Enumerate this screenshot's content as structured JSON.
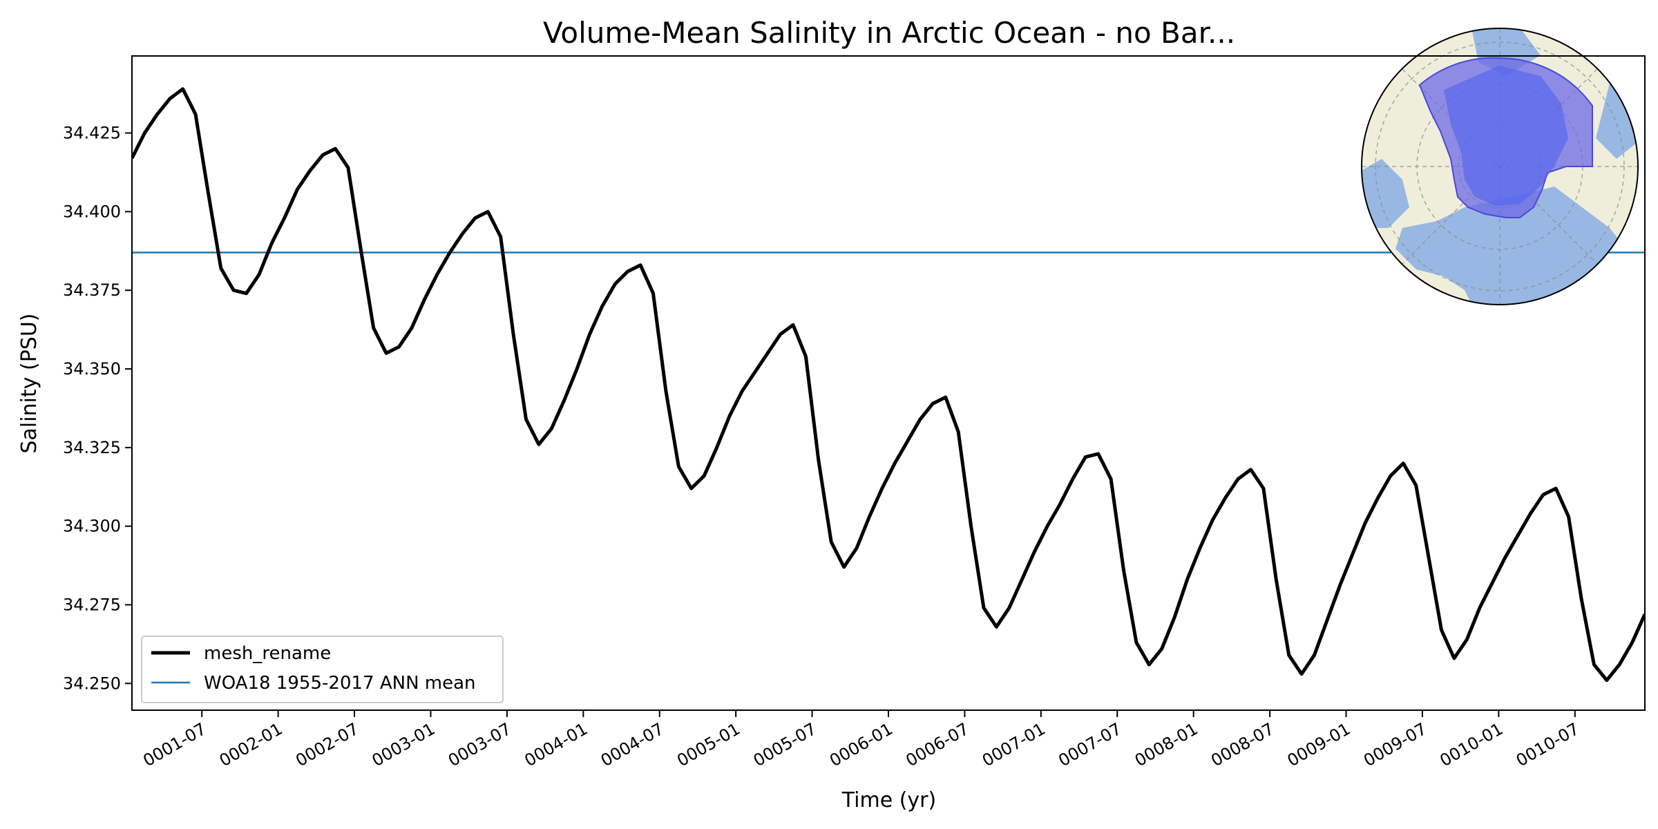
{
  "chart_data": {
    "type": "line",
    "title": "Volume-Mean Salinity in Arctic Ocean - no Bar...",
    "xlabel": "Time (yr)",
    "ylabel": "Salinity (PSU)",
    "xlim": [
      "0001-01-16",
      "0010-12-16"
    ],
    "ylim": [
      34.2415,
      34.4495
    ],
    "x_ticks": [
      "0001-07",
      "0002-01",
      "0002-07",
      "0003-01",
      "0003-07",
      "0004-01",
      "0004-07",
      "0005-01",
      "0005-07",
      "0006-01",
      "0006-07",
      "0007-01",
      "0007-07",
      "0008-01",
      "0008-07",
      "0009-01",
      "0009-07",
      "0010-01",
      "0010-07"
    ],
    "y_ticks": [
      "34.250",
      "34.275",
      "34.300",
      "34.325",
      "34.350",
      "34.375",
      "34.400",
      "34.425"
    ],
    "legend_position": "lower-left",
    "grid": false,
    "inset": "north polar stereographic map with the Arctic Ocean region shaded blue",
    "series": [
      {
        "name": "mesh_rename",
        "color": "#000000",
        "x": [
          "0001-01",
          "0001-02",
          "0001-03",
          "0001-04",
          "0001-05",
          "0001-06",
          "0001-07",
          "0001-08",
          "0001-09",
          "0001-10",
          "0001-11",
          "0001-12",
          "0002-01",
          "0002-02",
          "0002-03",
          "0002-04",
          "0002-05",
          "0002-06",
          "0002-07",
          "0002-08",
          "0002-09",
          "0002-10",
          "0002-11",
          "0002-12",
          "0003-01",
          "0003-02",
          "0003-03",
          "0003-04",
          "0003-05",
          "0003-06",
          "0003-07",
          "0003-08",
          "0003-09",
          "0003-10",
          "0003-11",
          "0003-12",
          "0004-01",
          "0004-02",
          "0004-03",
          "0004-04",
          "0004-05",
          "0004-06",
          "0004-07",
          "0004-08",
          "0004-09",
          "0004-10",
          "0004-11",
          "0004-12",
          "0005-01",
          "0005-02",
          "0005-03",
          "0005-04",
          "0005-05",
          "0005-06",
          "0005-07",
          "0005-08",
          "0005-09",
          "0005-10",
          "0005-11",
          "0005-12",
          "0006-01",
          "0006-02",
          "0006-03",
          "0006-04",
          "0006-05",
          "0006-06",
          "0006-07",
          "0006-08",
          "0006-09",
          "0006-10",
          "0006-11",
          "0006-12",
          "0007-01",
          "0007-02",
          "0007-03",
          "0007-04",
          "0007-05",
          "0007-06",
          "0007-07",
          "0007-08",
          "0007-09",
          "0007-10",
          "0007-11",
          "0007-12",
          "0008-01",
          "0008-02",
          "0008-03",
          "0008-04",
          "0008-05",
          "0008-06",
          "0008-07",
          "0008-08",
          "0008-09",
          "0008-10",
          "0008-11",
          "0008-12",
          "0009-01",
          "0009-02",
          "0009-03",
          "0009-04",
          "0009-05",
          "0009-06",
          "0009-07",
          "0009-08",
          "0009-09",
          "0009-10",
          "0009-11",
          "0009-12",
          "0010-01",
          "0010-02",
          "0010-03",
          "0010-04",
          "0010-05",
          "0010-06",
          "0010-07",
          "0010-08",
          "0010-09",
          "0010-10",
          "0010-11",
          "0010-12"
        ],
        "values": [
          34.417,
          34.425,
          34.431,
          34.436,
          34.439,
          34.431,
          34.406,
          34.382,
          34.375,
          34.374,
          34.38,
          34.39,
          34.398,
          34.407,
          34.413,
          34.418,
          34.42,
          34.414,
          34.388,
          34.363,
          34.355,
          34.357,
          34.363,
          34.372,
          34.38,
          34.387,
          34.393,
          34.398,
          34.4,
          34.392,
          34.361,
          34.334,
          34.326,
          34.331,
          34.34,
          34.35,
          34.361,
          34.37,
          34.377,
          34.381,
          34.383,
          34.374,
          34.343,
          34.319,
          34.312,
          34.316,
          34.325,
          34.335,
          34.343,
          34.349,
          34.355,
          34.361,
          34.364,
          34.354,
          34.321,
          34.295,
          34.287,
          34.293,
          34.303,
          34.312,
          34.32,
          34.327,
          34.334,
          34.339,
          34.341,
          34.33,
          34.3,
          34.274,
          34.268,
          34.274,
          34.283,
          34.292,
          34.3,
          34.307,
          34.315,
          34.322,
          34.323,
          34.315,
          34.286,
          34.263,
          34.256,
          34.261,
          34.271,
          34.283,
          34.293,
          34.302,
          34.309,
          34.315,
          34.318,
          34.312,
          34.283,
          34.259,
          34.253,
          34.259,
          34.27,
          34.281,
          34.291,
          34.301,
          34.309,
          34.316,
          34.32,
          34.313,
          34.29,
          34.267,
          34.258,
          34.264,
          34.274,
          34.282,
          34.29,
          34.297,
          34.304,
          34.31,
          34.312,
          34.303,
          34.277,
          34.256,
          34.251,
          34.256,
          34.263,
          34.272
        ]
      },
      {
        "name": "WOA18 1955-2017 ANN mean",
        "color": "#1f77b4",
        "values": [
          34.387
        ]
      }
    ]
  }
}
